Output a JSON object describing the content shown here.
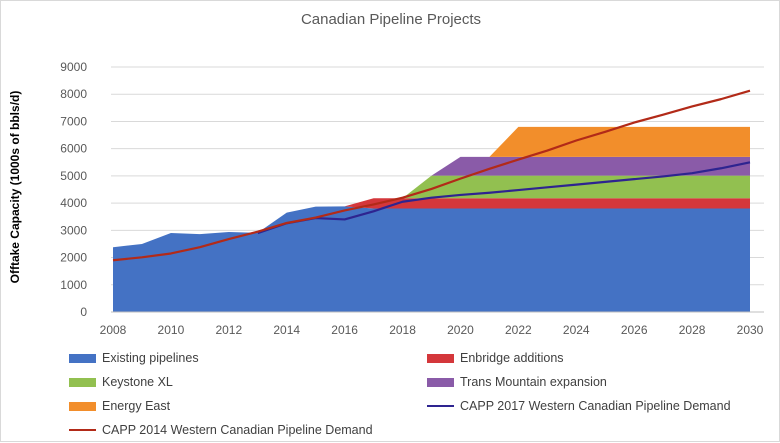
{
  "chart_data": {
    "type": "area",
    "title": "Canadian Pipeline Projects",
    "ylabel": "Offtake Capacity (1000s of bbls/d)",
    "xlabel": "",
    "x": [
      2008,
      2009,
      2010,
      2011,
      2012,
      2013,
      2014,
      2015,
      2016,
      2017,
      2018,
      2019,
      2020,
      2021,
      2022,
      2023,
      2024,
      2025,
      2026,
      2027,
      2028,
      2029,
      2030
    ],
    "xticks": [
      2008,
      2010,
      2012,
      2014,
      2016,
      2018,
      2020,
      2022,
      2024,
      2026,
      2028,
      2030
    ],
    "yticks": [
      0,
      1000,
      2000,
      3000,
      4000,
      5000,
      6000,
      7000,
      8000,
      9000
    ],
    "xlim": [
      2008,
      2030
    ],
    "ylim": [
      0,
      9000
    ],
    "grid": true,
    "legend_position": "bottom",
    "stacked_series": [
      {
        "name": "Existing pipelines",
        "color": "#4472C4",
        "values": [
          2380,
          2500,
          2900,
          2860,
          2940,
          2910,
          3650,
          3870,
          3880,
          3800,
          3800,
          3800,
          3800,
          3800,
          3800,
          3800,
          3800,
          3800,
          3800,
          3800,
          3800,
          3800,
          3800
        ]
      },
      {
        "name": "Enbridge additions",
        "color": "#D4373B",
        "values": [
          0,
          0,
          0,
          0,
          0,
          0,
          0,
          0,
          0,
          380,
          380,
          380,
          380,
          380,
          380,
          380,
          380,
          380,
          380,
          380,
          380,
          380,
          380
        ]
      },
      {
        "name": "Keystone XL",
        "color": "#92C050",
        "values": [
          0,
          0,
          0,
          0,
          0,
          0,
          0,
          0,
          0,
          0,
          0,
          830,
          830,
          830,
          830,
          830,
          830,
          830,
          830,
          830,
          830,
          830,
          830
        ]
      },
      {
        "name": "Trans Mountain expansion",
        "color": "#8A5BA8",
        "values": [
          0,
          0,
          0,
          0,
          0,
          0,
          0,
          0,
          0,
          0,
          0,
          0,
          690,
          690,
          690,
          690,
          690,
          690,
          690,
          690,
          690,
          690,
          690
        ]
      },
      {
        "name": "Energy East",
        "color": "#F28E2B",
        "values": [
          0,
          0,
          0,
          0,
          0,
          0,
          0,
          0,
          0,
          0,
          0,
          0,
          0,
          0,
          1100,
          1100,
          1100,
          1100,
          1100,
          1100,
          1100,
          1100,
          1100
        ]
      }
    ],
    "line_series": [
      {
        "name": "CAPP 2017 Western Canadian Pipeline Demand",
        "color": "#2E2490",
        "values": [
          null,
          null,
          null,
          null,
          null,
          2900,
          3260,
          3450,
          3400,
          3700,
          4050,
          4200,
          4300,
          4380,
          4480,
          4580,
          4680,
          4780,
          4880,
          4980,
          5100,
          5280,
          5500
        ]
      },
      {
        "name": "CAPP 2014 Western Canadian Pipeline Demand",
        "color": "#B22A18",
        "values": [
          1900,
          2010,
          2150,
          2380,
          2680,
          2950,
          3270,
          3470,
          3730,
          3950,
          4200,
          4520,
          4900,
          5260,
          5600,
          5930,
          6300,
          6620,
          6960,
          7250,
          7550,
          7820,
          8130
        ]
      }
    ]
  },
  "legend": [
    {
      "label": "Existing pipelines",
      "kind": "swatch",
      "color": "#4472C4"
    },
    {
      "label": "Enbridge additions",
      "kind": "swatch",
      "color": "#D4373B"
    },
    {
      "label": "Keystone XL",
      "kind": "swatch",
      "color": "#92C050"
    },
    {
      "label": "Trans Mountain expansion",
      "kind": "swatch",
      "color": "#8A5BA8"
    },
    {
      "label": "Energy East",
      "kind": "swatch",
      "color": "#F28E2B"
    },
    {
      "label": "CAPP 2017 Western Canadian Pipeline Demand",
      "kind": "line",
      "color": "#2E2490"
    },
    {
      "label": "CAPP 2014 Western Canadian Pipeline Demand",
      "kind": "line",
      "color": "#B22A18"
    }
  ]
}
